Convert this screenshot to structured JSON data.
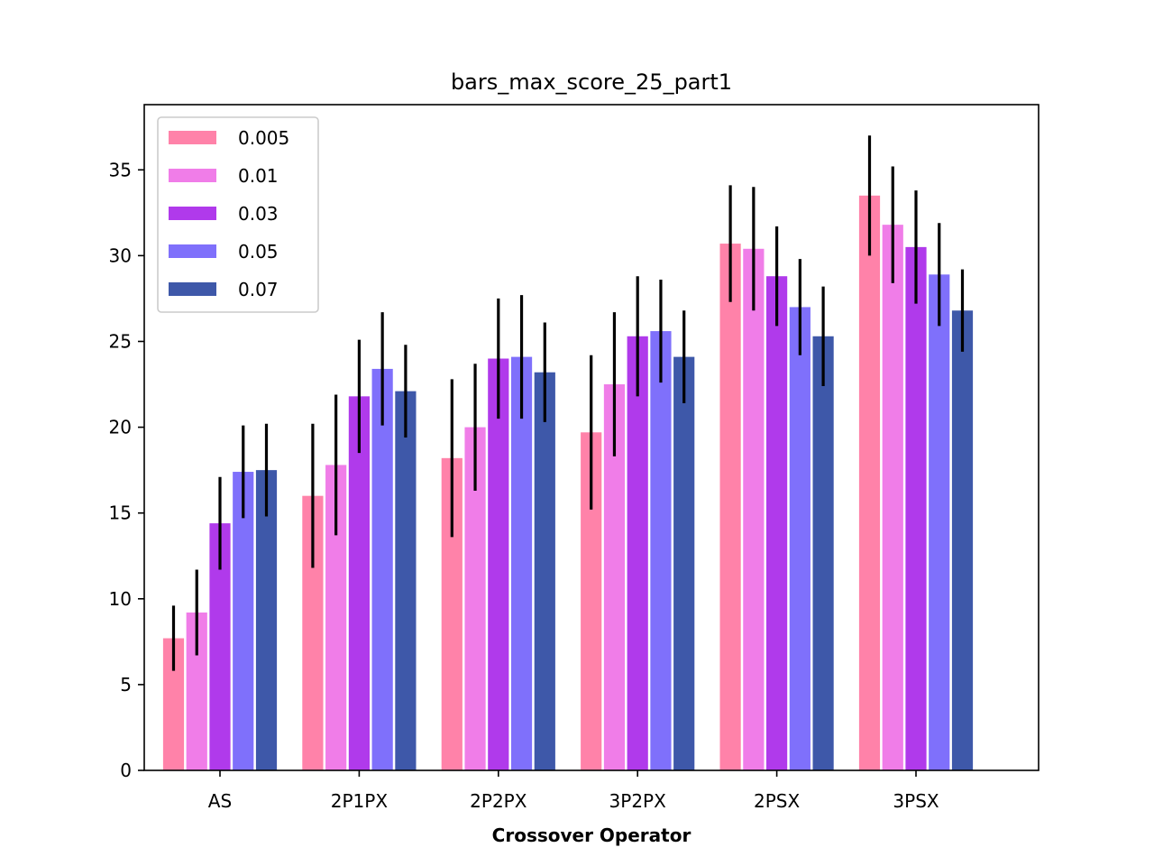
{
  "chart_data": {
    "type": "bar",
    "title": "bars_max_score_25_part1",
    "xlabel": "Crossover Operator",
    "ylabel": "",
    "ylim": [
      0,
      38.8
    ],
    "yticks": [
      0,
      5,
      10,
      15,
      20,
      25,
      30,
      35
    ],
    "categories": [
      "AS",
      "2P1PX",
      "2P2PX",
      "3P2PX",
      "2PSX",
      "3PSX"
    ],
    "legend_position": "top-left",
    "grid": false,
    "series": [
      {
        "name": "0.005",
        "color": "#ff82a9",
        "values": [
          7.7,
          16.0,
          18.2,
          19.7,
          30.7,
          33.5
        ],
        "err": [
          1.9,
          4.2,
          4.6,
          4.5,
          3.4,
          3.5
        ]
      },
      {
        "name": "0.01",
        "color": "#f07de8",
        "values": [
          9.2,
          17.8,
          20.0,
          22.5,
          30.4,
          31.8
        ],
        "err": [
          2.5,
          4.1,
          3.7,
          4.2,
          3.6,
          3.4
        ]
      },
      {
        "name": "0.03",
        "color": "#b03aeb",
        "values": [
          14.4,
          21.8,
          24.0,
          25.3,
          28.8,
          30.5
        ],
        "err": [
          2.7,
          3.3,
          3.5,
          3.5,
          2.9,
          3.3
        ]
      },
      {
        "name": "0.05",
        "color": "#7f70fb",
        "values": [
          17.4,
          23.4,
          24.1,
          25.6,
          27.0,
          28.9
        ],
        "err": [
          2.7,
          3.3,
          3.6,
          3.0,
          2.8,
          3.0
        ]
      },
      {
        "name": "0.07",
        "color": "#3e58a9",
        "values": [
          17.5,
          22.1,
          23.2,
          24.1,
          25.3,
          26.8
        ],
        "err": [
          2.7,
          2.7,
          2.9,
          2.7,
          2.9,
          2.4
        ]
      }
    ]
  }
}
